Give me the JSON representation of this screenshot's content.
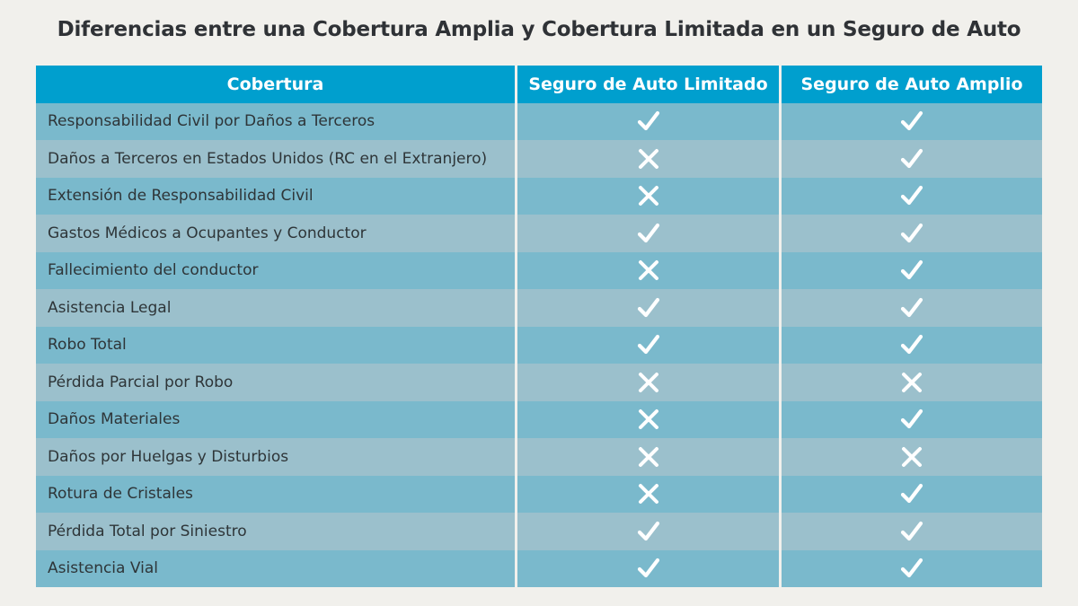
{
  "title": "Diferencias entre una Cobertura Amplia y Cobertura Limitada en un Seguro de Auto",
  "headers": [
    "Cobertura",
    "Seguro de Auto Limitado",
    "Seguro de Auto Amplio"
  ],
  "rows": [
    {
      "label": "Responsabilidad Civil por Daños a Terceros",
      "limitado": "check",
      "amplio": "check"
    },
    {
      "label": "Daños a Terceros en Estados Unidos (RC en el Extranjero)",
      "limitado": "cross",
      "amplio": "check"
    },
    {
      "label": "Extensión de Responsabilidad Civil",
      "limitado": "cross",
      "amplio": "check"
    },
    {
      "label": "Gastos Médicos a Ocupantes y Conductor",
      "limitado": "check",
      "amplio": "check"
    },
    {
      "label": "Fallecimiento del conductor",
      "limitado": "cross",
      "amplio": "check"
    },
    {
      "label": "Asistencia Legal",
      "limitado": "check",
      "amplio": "check"
    },
    {
      "label": "Robo Total",
      "limitado": "check",
      "amplio": "check"
    },
    {
      "label": "Pérdida Parcial por Robo",
      "limitado": "cross",
      "amplio": "cross"
    },
    {
      "label": "Daños Materiales",
      "limitado": "cross",
      "amplio": "check"
    },
    {
      "label": "Daños por Huelgas y Disturbios",
      "limitado": "cross",
      "amplio": "cross"
    },
    {
      "label": "Rotura de Cristales",
      "limitado": "cross",
      "amplio": "check"
    },
    {
      "label": "Pérdida Total por Siniestro",
      "limitado": "check",
      "amplio": "check"
    },
    {
      "label": "Asistencia Vial",
      "limitado": "check",
      "amplio": "check"
    }
  ],
  "colors": {
    "header": "#009fce",
    "row_odd": "#7ab9cc",
    "row_even": "#9bc0cc",
    "mark": "#ffffff"
  }
}
